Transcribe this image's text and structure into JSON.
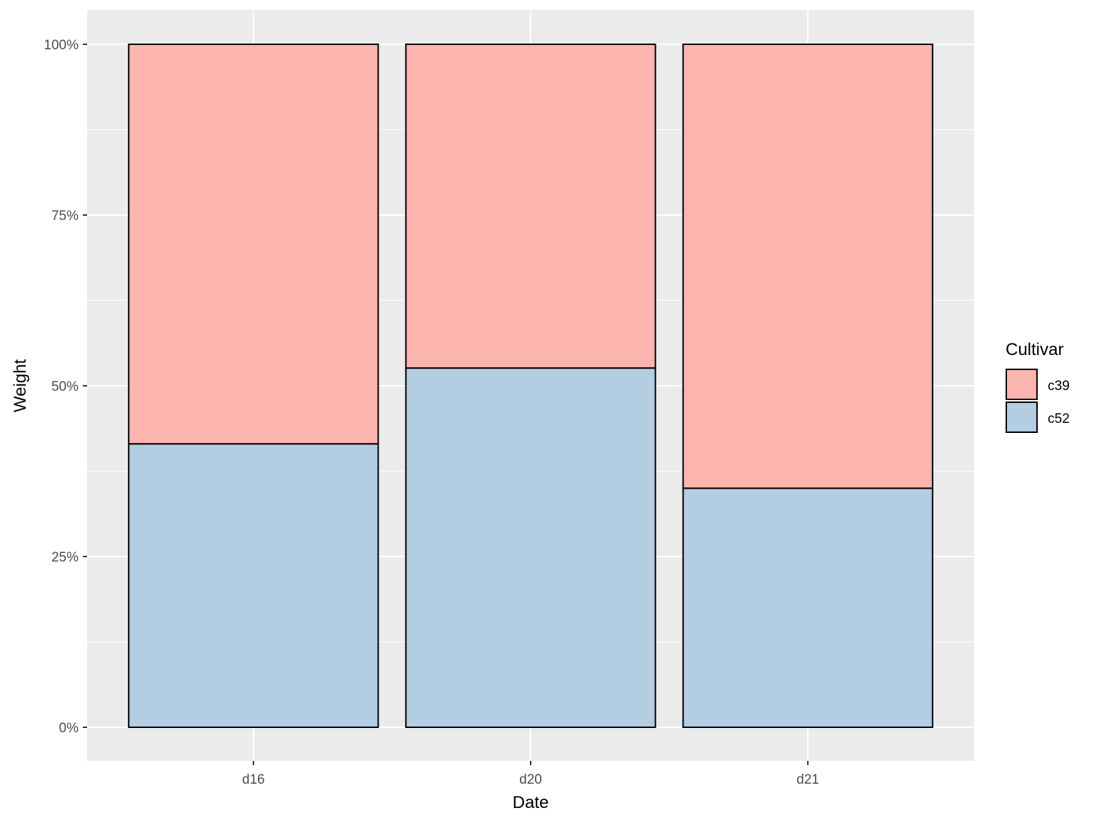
{
  "chart_data": {
    "type": "bar",
    "stacked": true,
    "percent": true,
    "categories": [
      "d16",
      "d20",
      "d21"
    ],
    "series": [
      {
        "name": "c52",
        "values": [
          41.5,
          52.6,
          35.0
        ],
        "color": "#B3CDE3"
      },
      {
        "name": "c39",
        "values": [
          58.5,
          47.4,
          65.0
        ],
        "color": "#FBB4AE"
      }
    ],
    "xlabel": "Date",
    "ylabel": "Weight",
    "ylim": [
      0,
      100
    ],
    "yticks": [
      0,
      25,
      50,
      75,
      100
    ],
    "ytick_labels": [
      "0%",
      "25%",
      "50%",
      "75%",
      "100%"
    ],
    "legend": {
      "title": "Cultivar",
      "position": "right",
      "entries": [
        {
          "label": "c39",
          "color": "#FBB4AE"
        },
        {
          "label": "c52",
          "color": "#B3CDE3"
        }
      ]
    },
    "grid": true,
    "panel_background": "#EBEBEB",
    "bar_outline": "#000000"
  }
}
